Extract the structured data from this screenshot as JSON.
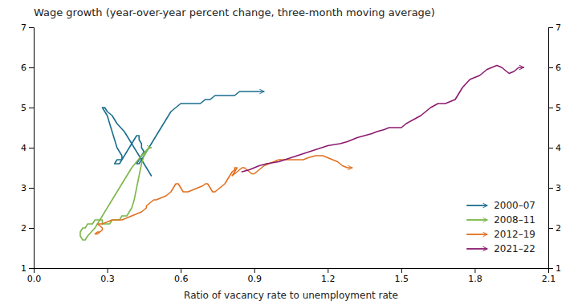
{
  "chart_data": {
    "type": "line",
    "title": "Wage growth (year-over-year percent change, three-month moving average)",
    "x_label": "Ratio of vacancy rate to unemployment rate",
    "xlim": [
      0.0,
      2.1
    ],
    "ylim": [
      1,
      7
    ],
    "y2lim": [
      1,
      7
    ],
    "xticks": [
      {
        "value": 0.0,
        "label": "0.0"
      },
      0.3,
      0.6,
      0.9,
      1.2,
      1.5,
      1.8,
      2.1
    ],
    "yticks": [
      1,
      2,
      3,
      4,
      5,
      6,
      7
    ],
    "y2ticks": [
      1,
      2,
      3,
      4,
      5,
      6,
      7
    ],
    "legend": "lower right",
    "series": [
      {
        "name": "2000–07",
        "color": "#1a6e8e",
        "x": [
          0.48,
          0.46,
          0.43,
          0.4,
          0.37,
          0.34,
          0.32,
          0.3,
          0.29,
          0.28,
          0.28,
          0.29,
          0.3,
          0.31,
          0.32,
          0.33,
          0.34,
          0.35,
          0.36,
          0.36,
          0.35,
          0.34,
          0.33,
          0.34,
          0.35,
          0.36,
          0.37,
          0.38,
          0.39,
          0.4,
          0.41,
          0.42,
          0.43,
          0.43,
          0.44,
          0.44,
          0.45,
          0.44,
          0.43,
          0.42,
          0.43,
          0.44,
          0.45,
          0.46,
          0.47,
          0.48,
          0.49,
          0.5,
          0.52,
          0.54,
          0.56,
          0.58,
          0.6,
          0.62,
          0.64,
          0.66,
          0.68,
          0.7,
          0.72,
          0.74,
          0.76,
          0.78,
          0.8,
          0.82,
          0.84,
          0.86,
          0.88,
          0.9,
          0.92,
          0.94
        ],
        "values": [
          3.3,
          3.5,
          3.8,
          4.1,
          4.4,
          4.6,
          4.8,
          4.9,
          5.0,
          5.0,
          5.0,
          4.9,
          4.8,
          4.6,
          4.4,
          4.2,
          4.0,
          3.9,
          3.8,
          3.7,
          3.7,
          3.7,
          3.6,
          3.6,
          3.6,
          3.7,
          3.8,
          3.9,
          4.0,
          4.1,
          4.2,
          4.3,
          4.3,
          4.2,
          4.1,
          4.0,
          3.9,
          3.8,
          3.7,
          3.6,
          3.6,
          3.7,
          3.8,
          3.9,
          4.0,
          4.1,
          4.2,
          4.3,
          4.5,
          4.7,
          4.9,
          5.0,
          5.1,
          5.1,
          5.1,
          5.1,
          5.1,
          5.2,
          5.2,
          5.3,
          5.3,
          5.3,
          5.3,
          5.3,
          5.4,
          5.4,
          5.4,
          5.4,
          5.4,
          5.4
        ]
      },
      {
        "name": "2008–11",
        "color": "#7ab648",
        "x": [
          0.47,
          0.44,
          0.4,
          0.36,
          0.32,
          0.28,
          0.25,
          0.22,
          0.21,
          0.2,
          0.19,
          0.19,
          0.2,
          0.2,
          0.21,
          0.22,
          0.23,
          0.24,
          0.25,
          0.26,
          0.27,
          0.28,
          0.28,
          0.29,
          0.3,
          0.31,
          0.32,
          0.33,
          0.34,
          0.35,
          0.36,
          0.37,
          0.38,
          0.39,
          0.4,
          0.41,
          0.42,
          0.43,
          0.44,
          0.45,
          0.46,
          0.47,
          0.48
        ],
        "values": [
          4.0,
          3.8,
          3.5,
          3.1,
          2.7,
          2.3,
          2.0,
          1.8,
          1.7,
          1.7,
          1.8,
          1.9,
          2.0,
          2.0,
          2.0,
          2.1,
          2.1,
          2.1,
          2.2,
          2.2,
          2.2,
          2.2,
          2.1,
          2.1,
          2.1,
          2.1,
          2.2,
          2.2,
          2.2,
          2.2,
          2.3,
          2.3,
          2.3,
          2.4,
          2.5,
          2.7,
          3.0,
          3.3,
          3.6,
          3.8,
          3.9,
          4.0,
          4.0
        ]
      },
      {
        "name": "2012–19",
        "color": "#e07020",
        "x": [
          0.27,
          0.26,
          0.25,
          0.25,
          0.26,
          0.27,
          0.28,
          0.28,
          0.27,
          0.26,
          0.27,
          0.28,
          0.3,
          0.32,
          0.34,
          0.36,
          0.38,
          0.4,
          0.42,
          0.44,
          0.45,
          0.46,
          0.46,
          0.47,
          0.48,
          0.49,
          0.5,
          0.52,
          0.54,
          0.55,
          0.56,
          0.57,
          0.58,
          0.59,
          0.6,
          0.61,
          0.63,
          0.65,
          0.67,
          0.69,
          0.7,
          0.71,
          0.72,
          0.73,
          0.74,
          0.75,
          0.76,
          0.77,
          0.78,
          0.79,
          0.8,
          0.81,
          0.82,
          0.82,
          0.83,
          0.82,
          0.81,
          0.82,
          0.83,
          0.84,
          0.85,
          0.86,
          0.87,
          0.88,
          0.89,
          0.9,
          0.91,
          0.92,
          0.93,
          0.94,
          0.96,
          0.98,
          1.0,
          1.02,
          1.05,
          1.08,
          1.1,
          1.12,
          1.15,
          1.18,
          1.2,
          1.22,
          1.24,
          1.26,
          1.28,
          1.3
        ],
        "values": [
          1.9,
          1.9,
          1.85,
          1.85,
          1.85,
          1.9,
          1.95,
          2.0,
          2.05,
          2.1,
          2.1,
          2.1,
          2.15,
          2.2,
          2.2,
          2.2,
          2.25,
          2.3,
          2.35,
          2.4,
          2.45,
          2.5,
          2.55,
          2.6,
          2.65,
          2.7,
          2.7,
          2.75,
          2.8,
          2.85,
          2.9,
          3.0,
          3.1,
          3.1,
          3.0,
          2.9,
          2.9,
          2.95,
          3.0,
          3.05,
          3.1,
          3.1,
          3.0,
          2.9,
          2.9,
          2.95,
          3.0,
          3.05,
          3.1,
          3.2,
          3.3,
          3.4,
          3.45,
          3.5,
          3.5,
          3.4,
          3.3,
          3.35,
          3.4,
          3.45,
          3.5,
          3.5,
          3.45,
          3.4,
          3.35,
          3.35,
          3.4,
          3.45,
          3.5,
          3.55,
          3.6,
          3.65,
          3.7,
          3.7,
          3.7,
          3.7,
          3.7,
          3.75,
          3.8,
          3.8,
          3.75,
          3.7,
          3.65,
          3.55,
          3.5,
          3.5
        ]
      },
      {
        "name": "2021–22",
        "color": "#8b1a6e",
        "x": [
          0.85,
          0.88,
          0.9,
          0.92,
          0.95,
          1.0,
          1.05,
          1.1,
          1.15,
          1.2,
          1.25,
          1.28,
          1.3,
          1.32,
          1.35,
          1.38,
          1.4,
          1.43,
          1.45,
          1.48,
          1.5,
          1.52,
          1.55,
          1.58,
          1.6,
          1.62,
          1.65,
          1.68,
          1.7,
          1.72,
          1.75,
          1.78,
          1.8,
          1.82,
          1.83,
          1.84,
          1.85,
          1.87,
          1.89,
          1.91,
          1.92,
          1.93,
          1.94,
          1.96,
          1.97,
          1.98,
          2.0
        ],
        "values": [
          3.4,
          3.45,
          3.5,
          3.55,
          3.6,
          3.65,
          3.75,
          3.85,
          3.95,
          4.05,
          4.1,
          4.15,
          4.2,
          4.25,
          4.3,
          4.35,
          4.4,
          4.45,
          4.5,
          4.5,
          4.5,
          4.6,
          4.7,
          4.8,
          4.9,
          5.0,
          5.1,
          5.1,
          5.15,
          5.2,
          5.5,
          5.7,
          5.75,
          5.8,
          5.85,
          5.9,
          5.95,
          6.0,
          6.05,
          6.0,
          5.95,
          5.9,
          5.85,
          5.9,
          5.95,
          6.0,
          6.0
        ]
      }
    ]
  }
}
